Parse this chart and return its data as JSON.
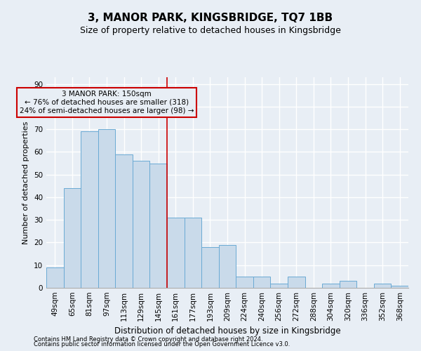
{
  "title": "3, MANOR PARK, KINGSBRIDGE, TQ7 1BB",
  "subtitle": "Size of property relative to detached houses in Kingsbridge",
  "xlabel": "Distribution of detached houses by size in Kingsbridge",
  "ylabel": "Number of detached properties",
  "footnote1": "Contains HM Land Registry data © Crown copyright and database right 2024.",
  "footnote2": "Contains public sector information licensed under the Open Government Licence v3.0.",
  "annotation_line1": "3 MANOR PARK: 150sqm",
  "annotation_line2": "← 76% of detached houses are smaller (318)",
  "annotation_line3": "24% of semi-detached houses are larger (98) →",
  "bin_labels": [
    "49sqm",
    "65sqm",
    "81sqm",
    "97sqm",
    "113sqm",
    "129sqm",
    "145sqm",
    "161sqm",
    "177sqm",
    "193sqm",
    "209sqm",
    "224sqm",
    "240sqm",
    "256sqm",
    "272sqm",
    "288sqm",
    "304sqm",
    "320sqm",
    "336sqm",
    "352sqm",
    "368sqm"
  ],
  "bar_values": [
    9,
    44,
    69,
    70,
    59,
    56,
    55,
    31,
    31,
    18,
    19,
    5,
    5,
    2,
    5,
    0,
    2,
    3,
    0,
    2,
    1
  ],
  "bar_color": "#c9daea",
  "bar_edge_color": "#6aaad4",
  "vline_color": "#cc0000",
  "vline_x": 6.5,
  "annotation_box_color": "#cc0000",
  "ylim": [
    0,
    93
  ],
  "yticks": [
    0,
    10,
    20,
    30,
    40,
    50,
    60,
    70,
    80,
    90
  ],
  "background_color": "#e8eef5",
  "grid_color": "#ffffff",
  "title_fontsize": 11,
  "subtitle_fontsize": 9,
  "ylabel_fontsize": 8,
  "xlabel_fontsize": 8.5,
  "tick_fontsize": 7.5,
  "annot_fontsize": 7.5,
  "footnote_fontsize": 6
}
